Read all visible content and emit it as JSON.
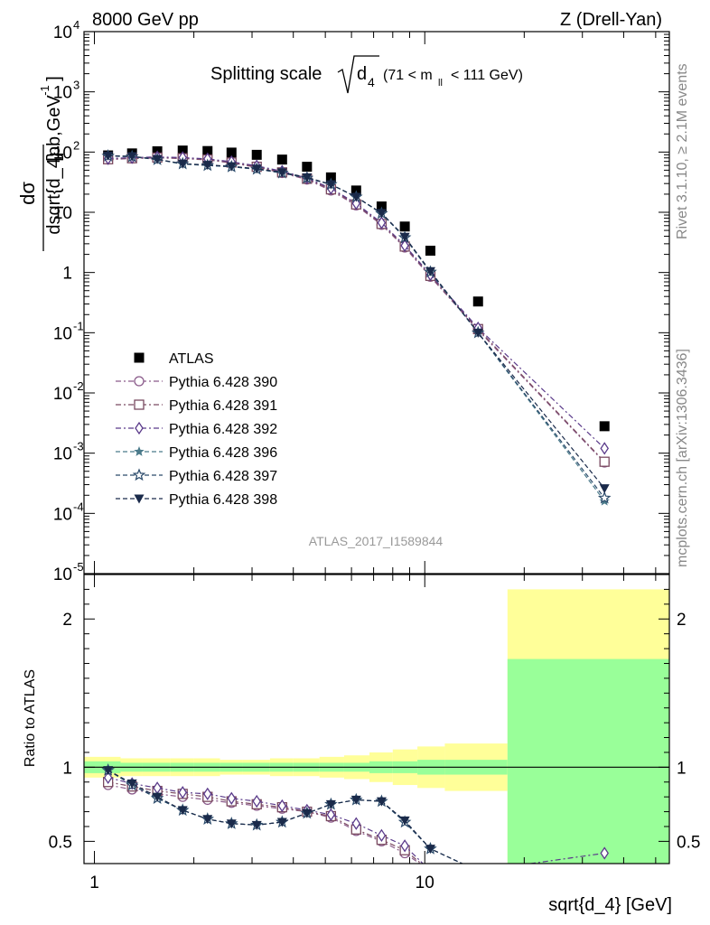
{
  "header": {
    "left": "8000 GeV pp",
    "right": "Z (Drell-Yan)"
  },
  "side_labels": {
    "rivet": "Rivet 3.1.10, ≥ 2.1M events",
    "mcplots": "mcplots.cern.ch [arXiv:1306.3436]"
  },
  "watermark": "ATLAS_2017_I1589844",
  "chart_data": [
    {
      "type": "scatter",
      "panel": "main",
      "title": "Splitting scale √d₄ (71 < m_ll < 111 GeV)",
      "title_main": "Splitting scale",
      "title_var": "d",
      "title_sub": "4",
      "title_range": "(71 < m",
      "title_range_sub": "ll",
      "title_range_end": "< 111 GeV)",
      "ylabel": "dσ / dsqrt{d_4} [pb,GeV⁻¹]",
      "ylabel_num": "dσ",
      "ylabel_den": "dsqrt{d_4}",
      "ylabel_unit": "[pb,GeV",
      "ylabel_unit_sup": "-1",
      "ylabel_unit_end": "]",
      "y_scale": "log",
      "x_scale": "log",
      "xlim": [
        0.93,
        55
      ],
      "ylim": [
        1e-05,
        10000
      ],
      "y_ticks": [
        {
          "value": 1e-05,
          "base": "10",
          "exp": "-5"
        },
        {
          "value": 0.0001,
          "base": "10",
          "exp": "-4"
        },
        {
          "value": 0.001,
          "base": "10",
          "exp": "-3"
        },
        {
          "value": 0.01,
          "base": "10",
          "exp": "-2"
        },
        {
          "value": 0.1,
          "base": "10",
          "exp": "-1"
        },
        {
          "value": 1,
          "base": "1",
          "exp": ""
        },
        {
          "value": 10,
          "base": "10",
          "exp": ""
        },
        {
          "value": 100,
          "base": "10",
          "exp": "2"
        },
        {
          "value": 1000,
          "base": "10",
          "exp": "3"
        },
        {
          "value": 10000,
          "base": "10",
          "exp": "4"
        }
      ],
      "legend_position": "left-middle",
      "x": [
        1.1,
        1.3,
        1.55,
        1.85,
        2.2,
        2.6,
        3.1,
        3.7,
        4.4,
        5.2,
        6.2,
        7.4,
        8.7,
        10.4,
        14.5,
        35.0
      ],
      "series": [
        {
          "name": "ATLAS",
          "color": "#000000",
          "marker": "square",
          "dash": "",
          "values": [
            88,
            95,
            103,
            106,
            104,
            98,
            90,
            75,
            57,
            38,
            23,
            12.5,
            5.8,
            2.3,
            0.33,
            0.0028
          ]
        },
        {
          "name": "Pythia 6.428 390",
          "color": "#8a5a8a",
          "marker": "circle",
          "dash": "6,3,2,3",
          "values": [
            75,
            78,
            80,
            78,
            74,
            66,
            56,
            45,
            35,
            23,
            13,
            6.2,
            2.6,
            0.85,
            0.11,
            0.0007
          ]
        },
        {
          "name": "Pythia 6.428 391",
          "color": "#7a4a60",
          "marker": "square-open",
          "dash": "6,3,2,3",
          "values": [
            76,
            79,
            81,
            79,
            75,
            67,
            57,
            46,
            36,
            24,
            13.5,
            6.4,
            2.7,
            0.88,
            0.115,
            0.00072
          ]
        },
        {
          "name": "Pythia 6.428 392",
          "color": "#5a3a8a",
          "marker": "diamond",
          "dash": "6,3,2,3",
          "values": [
            78,
            81,
            83,
            81,
            77,
            69,
            59,
            48,
            37,
            25,
            14,
            6.7,
            2.8,
            0.92,
            0.12,
            0.0012
          ]
        },
        {
          "name": "Pythia 6.428 396",
          "color": "#4a7a8a",
          "marker": "star-filled",
          "dash": "5,3",
          "values": [
            86,
            84,
            75,
            63,
            60,
            57,
            52,
            45,
            37,
            29,
            18,
            9.5,
            3.8,
            1.0,
            0.1,
            0.00016
          ]
        },
        {
          "name": "Pythia 6.428 397",
          "color": "#2a4a6a",
          "marker": "star-open",
          "dash": "5,3",
          "values": [
            86,
            84,
            75,
            64,
            60,
            57,
            52,
            45,
            37,
            29,
            18,
            9.6,
            3.8,
            1.02,
            0.1,
            0.00018
          ]
        },
        {
          "name": "Pythia 6.428 398",
          "color": "#1a2a4a",
          "marker": "triangle-down",
          "dash": "5,3",
          "values": [
            87,
            85,
            76,
            64,
            61,
            58,
            53,
            46,
            38,
            29,
            18,
            9.7,
            3.9,
            1.05,
            0.1,
            0.00026
          ]
        }
      ]
    },
    {
      "type": "line",
      "panel": "ratio",
      "ylabel": "Ratio to ATLAS",
      "xlabel": "sqrt{d_4} [GeV]",
      "ylim": [
        0.35,
        2.3
      ],
      "y_ticks": [
        0.5,
        1,
        2
      ],
      "y_tick_labels": [
        "0.5",
        "1",
        "2"
      ],
      "x_ticks": [
        1,
        10
      ],
      "x_tick_labels": [
        "1",
        "10"
      ],
      "bands": {
        "edges": [
          0.93,
          1.2,
          1.4,
          1.7,
          2.0,
          2.4,
          2.8,
          3.4,
          4.0,
          4.8,
          5.7,
          6.8,
          8.0,
          9.5,
          11.5,
          17.8,
          55
        ],
        "green_low": [
          0.96,
          0.97,
          0.97,
          0.97,
          0.97,
          0.97,
          0.97,
          0.97,
          0.97,
          0.97,
          0.97,
          0.96,
          0.96,
          0.95,
          0.95,
          0.3
        ],
        "green_high": [
          1.04,
          1.03,
          1.03,
          1.03,
          1.03,
          1.03,
          1.03,
          1.03,
          1.03,
          1.03,
          1.03,
          1.04,
          1.04,
          1.05,
          1.05,
          1.73
        ],
        "yellow_low": [
          0.93,
          0.94,
          0.94,
          0.94,
          0.94,
          0.95,
          0.95,
          0.94,
          0.94,
          0.93,
          0.92,
          0.9,
          0.88,
          0.86,
          0.84,
          0.3
        ],
        "yellow_high": [
          1.07,
          1.06,
          1.06,
          1.06,
          1.06,
          1.05,
          1.05,
          1.06,
          1.06,
          1.07,
          1.08,
          1.1,
          1.12,
          1.14,
          1.16,
          2.2
        ],
        "green_color": "#99ff99",
        "yellow_color": "#ffff99"
      },
      "series": [
        {
          "name": "Pythia 6.428 390",
          "values": [
            0.88,
            0.85,
            0.82,
            0.8,
            0.78,
            0.76,
            0.74,
            0.72,
            0.7,
            0.66,
            0.57,
            0.5,
            0.42,
            0.3,
            0.3,
            0.3
          ]
        },
        {
          "name": "Pythia 6.428 391",
          "values": [
            0.9,
            0.87,
            0.84,
            0.82,
            0.8,
            0.77,
            0.75,
            0.73,
            0.7,
            0.67,
            0.58,
            0.51,
            0.44,
            0.3,
            0.3,
            0.3
          ]
        },
        {
          "name": "Pythia 6.428 392",
          "values": [
            0.93,
            0.89,
            0.86,
            0.83,
            0.82,
            0.79,
            0.77,
            0.74,
            0.71,
            0.68,
            0.62,
            0.54,
            0.47,
            0.3,
            0.3,
            0.42
          ]
        },
        {
          "name": "Pythia 6.428 396",
          "values": [
            0.98,
            0.88,
            0.79,
            0.71,
            0.65,
            0.62,
            0.61,
            0.63,
            0.69,
            0.75,
            0.78,
            0.77,
            0.63,
            0.45,
            0.3,
            0.3
          ]
        },
        {
          "name": "Pythia 6.428 397",
          "values": [
            0.98,
            0.88,
            0.79,
            0.71,
            0.65,
            0.62,
            0.61,
            0.63,
            0.69,
            0.75,
            0.78,
            0.77,
            0.63,
            0.45,
            0.3,
            0.3
          ]
        },
        {
          "name": "Pythia 6.428 398",
          "values": [
            0.98,
            0.89,
            0.8,
            0.71,
            0.65,
            0.62,
            0.61,
            0.63,
            0.69,
            0.75,
            0.78,
            0.77,
            0.64,
            0.45,
            0.3,
            0.3
          ]
        }
      ]
    }
  ]
}
